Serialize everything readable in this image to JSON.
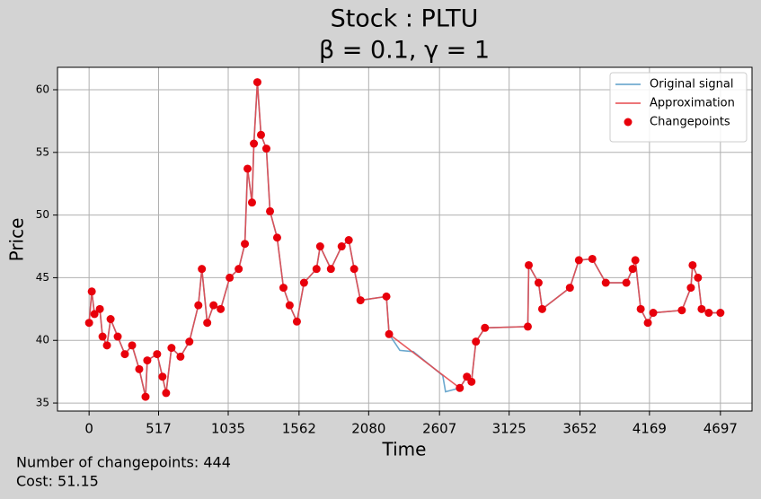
{
  "chart_data": {
    "type": "line",
    "title": "Stock : PLTU",
    "subtitle": "β = 0.1, γ = 1",
    "xlabel": "Time",
    "ylabel": "Price",
    "xlim": [
      -235,
      4932
    ],
    "ylim": [
      34.36,
      61.79
    ],
    "xticks": [
      0,
      517,
      1035,
      1562,
      2080,
      2607,
      3125,
      3652,
      4169,
      4697
    ],
    "yticks": [
      35,
      40,
      45,
      50,
      55,
      60
    ],
    "grid": true,
    "legend": "upper right",
    "annotations": [
      "Number of changepoints: 444",
      "Cost: 51.15"
    ],
    "series": [
      {
        "name": "Original signal",
        "type": "line",
        "color": "#5b9ec9",
        "x": [
          0,
          20,
          40,
          80,
          100,
          133,
          160,
          213,
          266,
          320,
          373,
          420,
          433,
          506,
          546,
          573,
          613,
          680,
          746,
          813,
          839,
          879,
          926,
          979,
          1046,
          1113,
          1159,
          1179,
          1212,
          1226,
          1252,
          1279,
          1319,
          1346,
          1399,
          1446,
          1492,
          1546,
          1599,
          1692,
          1719,
          1799,
          1879,
          1932,
          1972,
          2019,
          2212,
          2232,
          2312,
          2412,
          2631,
          2652,
          2758,
          2811,
          2845,
          2878,
          2945,
          3264,
          3271,
          3344,
          3371,
          3577,
          3644,
          3744,
          3844,
          3997,
          4044,
          4064,
          4104,
          4157,
          4197,
          4410,
          4477,
          4490,
          4530,
          4557,
          4610,
          4697
        ],
        "values": [
          41.4,
          43.9,
          42.1,
          42.5,
          40.3,
          39.6,
          41.7,
          40.3,
          38.9,
          39.6,
          37.7,
          35.5,
          38.4,
          38.9,
          37.1,
          35.8,
          39.4,
          38.7,
          39.9,
          42.8,
          45.7,
          41.4,
          42.8,
          42.5,
          45.0,
          45.7,
          47.7,
          53.7,
          51.0,
          55.7,
          60.6,
          56.4,
          55.3,
          50.3,
          48.2,
          44.2,
          42.8,
          41.5,
          44.6,
          45.7,
          47.5,
          45.7,
          47.5,
          48.0,
          45.7,
          43.2,
          43.5,
          40.5,
          39.2,
          39.1,
          37.2,
          35.9,
          36.2,
          37.1,
          36.7,
          39.9,
          41.0,
          41.1,
          46.0,
          44.6,
          42.5,
          44.2,
          46.4,
          46.5,
          44.6,
          44.6,
          45.7,
          46.4,
          42.5,
          41.4,
          42.2,
          42.4,
          44.2,
          46.0,
          45.0,
          42.5,
          42.2,
          42.2
        ]
      },
      {
        "name": "Approximation",
        "type": "line",
        "color": "#e5484d",
        "x": [
          0,
          20,
          40,
          80,
          100,
          133,
          160,
          213,
          266,
          320,
          373,
          420,
          433,
          506,
          546,
          573,
          613,
          680,
          746,
          813,
          839,
          879,
          926,
          979,
          1046,
          1113,
          1159,
          1179,
          1212,
          1226,
          1252,
          1279,
          1319,
          1346,
          1399,
          1446,
          1492,
          1546,
          1599,
          1692,
          1719,
          1799,
          1879,
          1932,
          1972,
          2019,
          2212,
          2232,
          2758,
          2811,
          2845,
          2878,
          2945,
          3264,
          3271,
          3344,
          3371,
          3577,
          3644,
          3744,
          3844,
          3997,
          4044,
          4064,
          4104,
          4157,
          4197,
          4410,
          4477,
          4490,
          4530,
          4557,
          4610,
          4697
        ],
        "values": [
          41.4,
          43.9,
          42.1,
          42.5,
          40.3,
          39.6,
          41.7,
          40.3,
          38.9,
          39.6,
          37.7,
          35.5,
          38.4,
          38.9,
          37.1,
          35.8,
          39.4,
          38.7,
          39.9,
          42.8,
          45.7,
          41.4,
          42.8,
          42.5,
          45.0,
          45.7,
          47.7,
          53.7,
          51.0,
          55.7,
          60.6,
          56.4,
          55.3,
          50.3,
          48.2,
          44.2,
          42.8,
          41.5,
          44.6,
          45.7,
          47.5,
          45.7,
          47.5,
          48.0,
          45.7,
          43.2,
          43.5,
          40.5,
          36.2,
          37.1,
          36.7,
          39.9,
          41.0,
          41.1,
          46.0,
          44.6,
          42.5,
          44.2,
          46.4,
          46.5,
          44.6,
          44.6,
          45.7,
          46.4,
          42.5,
          41.4,
          42.2,
          42.4,
          44.2,
          46.0,
          45.0,
          42.5,
          42.2,
          42.2
        ]
      },
      {
        "name": "Changepoints",
        "type": "scatter",
        "color": "#e8000b",
        "x": [
          0,
          20,
          40,
          80,
          100,
          133,
          160,
          213,
          266,
          320,
          373,
          420,
          433,
          506,
          546,
          573,
          613,
          680,
          746,
          813,
          839,
          879,
          926,
          979,
          1046,
          1113,
          1159,
          1179,
          1212,
          1226,
          1252,
          1279,
          1319,
          1346,
          1399,
          1446,
          1492,
          1546,
          1599,
          1692,
          1719,
          1799,
          1879,
          1932,
          1972,
          2019,
          2212,
          2232,
          2758,
          2811,
          2845,
          2878,
          2945,
          3264,
          3271,
          3344,
          3371,
          3577,
          3644,
          3744,
          3844,
          3997,
          4044,
          4064,
          4104,
          4157,
          4197,
          4410,
          4477,
          4490,
          4530,
          4557,
          4610,
          4697
        ],
        "values": [
          41.4,
          43.9,
          42.1,
          42.5,
          40.3,
          39.6,
          41.7,
          40.3,
          38.9,
          39.6,
          37.7,
          35.5,
          38.4,
          38.9,
          37.1,
          35.8,
          39.4,
          38.7,
          39.9,
          42.8,
          45.7,
          41.4,
          42.8,
          42.5,
          45.0,
          45.7,
          47.7,
          53.7,
          51.0,
          55.7,
          60.6,
          56.4,
          55.3,
          50.3,
          48.2,
          44.2,
          42.8,
          41.5,
          44.6,
          45.7,
          47.5,
          45.7,
          47.5,
          48.0,
          45.7,
          43.2,
          43.5,
          40.5,
          36.2,
          37.1,
          36.7,
          39.9,
          41.0,
          41.1,
          46.0,
          44.6,
          42.5,
          44.2,
          46.4,
          46.5,
          44.6,
          44.6,
          45.7,
          46.4,
          42.5,
          41.4,
          42.2,
          42.4,
          44.2,
          46.0,
          45.0,
          42.5,
          42.2,
          42.2
        ]
      }
    ]
  }
}
